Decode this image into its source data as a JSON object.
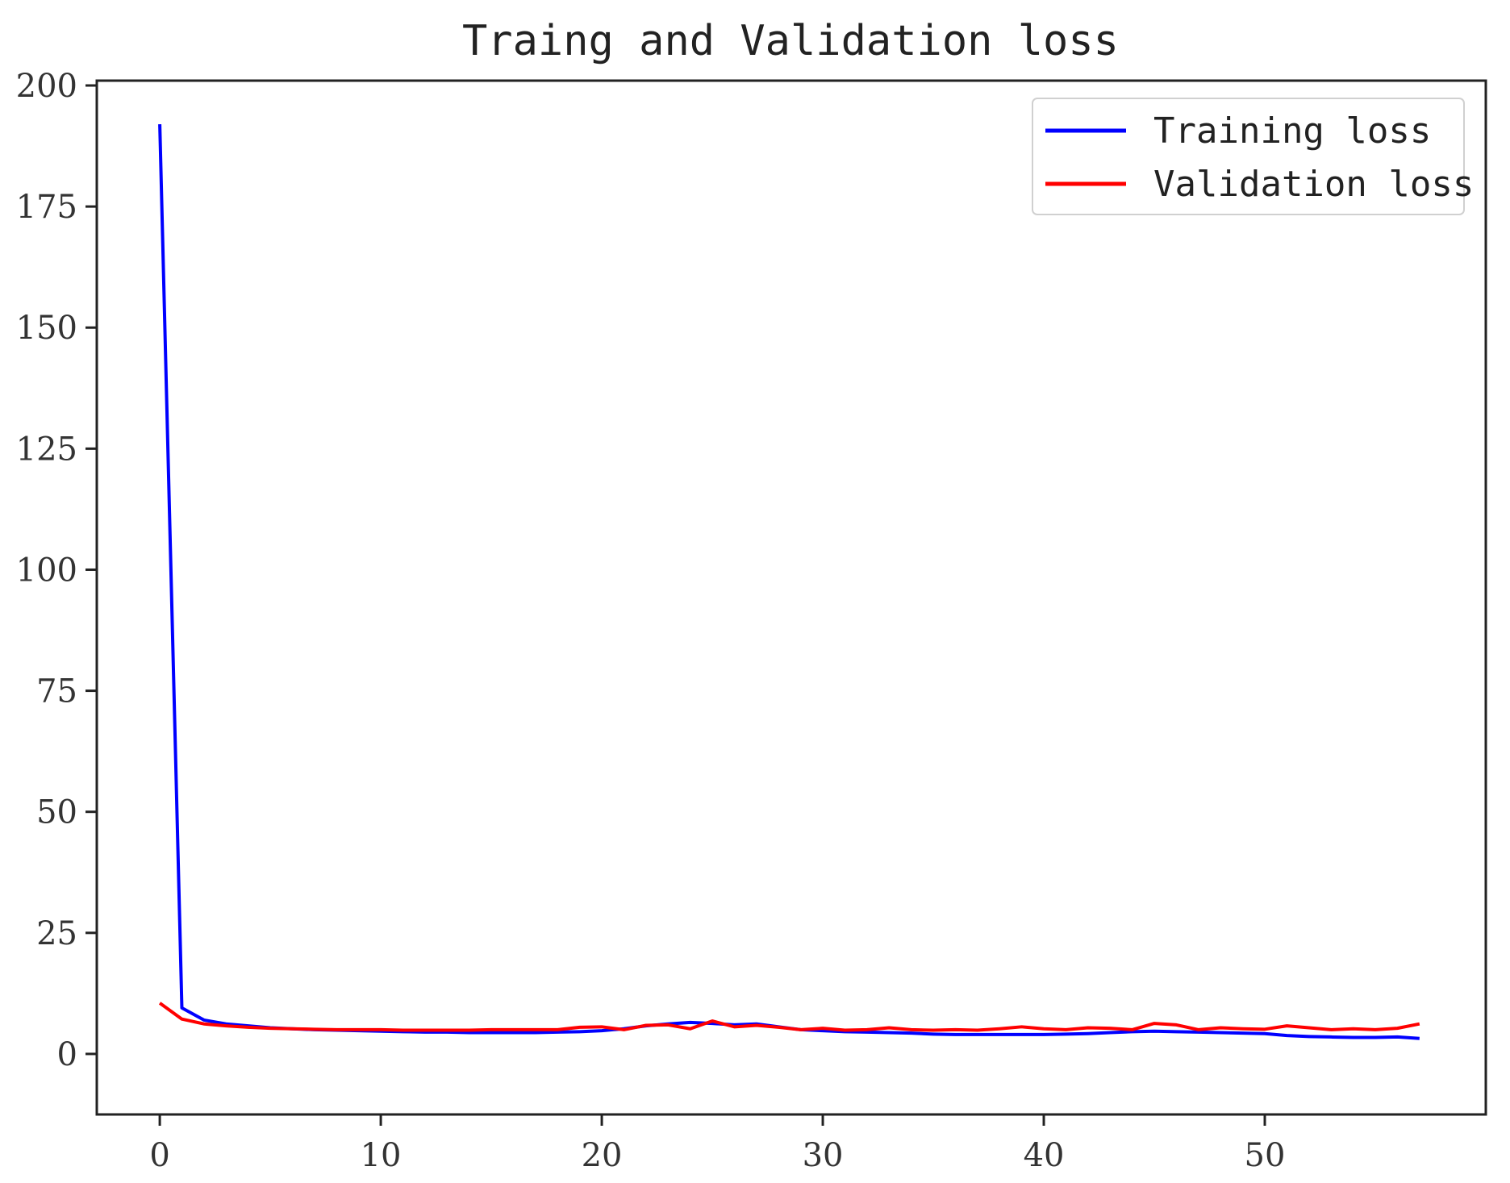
{
  "chart_data": {
    "type": "line",
    "title": "Traing and Validation loss",
    "xlabel": "",
    "ylabel": "",
    "xlim": [
      -2.85,
      60
    ],
    "ylim": [
      -12.5,
      201
    ],
    "xticks": [
      0,
      10,
      20,
      30,
      40,
      50
    ],
    "yticks": [
      0,
      25,
      50,
      75,
      100,
      125,
      150,
      175,
      200
    ],
    "grid": false,
    "legend_position": "top-right",
    "series": [
      {
        "name": "Training loss",
        "color": "#0000ff",
        "values": [
          192,
          9.5,
          7,
          6.2,
          5.8,
          5.4,
          5.2,
          5.0,
          4.9,
          4.8,
          4.7,
          4.6,
          4.5,
          4.5,
          4.4,
          4.4,
          4.4,
          4.4,
          4.5,
          4.6,
          4.8,
          5.2,
          5.8,
          6.2,
          6.5,
          6.3,
          6.0,
          6.2,
          5.6,
          5.0,
          4.8,
          4.6,
          4.5,
          4.4,
          4.3,
          4.1,
          4.0,
          4.0,
          4.0,
          4.0,
          4.0,
          4.1,
          4.2,
          4.4,
          4.6,
          4.7,
          4.6,
          4.5,
          4.4,
          4.3,
          4.2,
          3.8,
          3.6,
          3.5,
          3.4,
          3.4,
          3.5,
          3.2
        ]
      },
      {
        "name": "Validation loss",
        "color": "#ff0000",
        "values": [
          10.5,
          7.2,
          6.2,
          5.8,
          5.5,
          5.3,
          5.2,
          5.1,
          5.0,
          5.0,
          5.0,
          4.9,
          4.9,
          4.9,
          4.9,
          5.0,
          5.0,
          5.0,
          5.0,
          5.5,
          5.6,
          5.0,
          5.9,
          6.0,
          5.2,
          6.8,
          5.6,
          5.9,
          5.5,
          5.0,
          5.3,
          4.9,
          5.0,
          5.4,
          5.0,
          4.9,
          5.0,
          4.9,
          5.2,
          5.6,
          5.2,
          5.0,
          5.4,
          5.3,
          5.0,
          6.3,
          6.0,
          5.0,
          5.4,
          5.2,
          5.1,
          5.8,
          5.4,
          5.0,
          5.2,
          5.0,
          5.3,
          6.2
        ]
      }
    ]
  }
}
